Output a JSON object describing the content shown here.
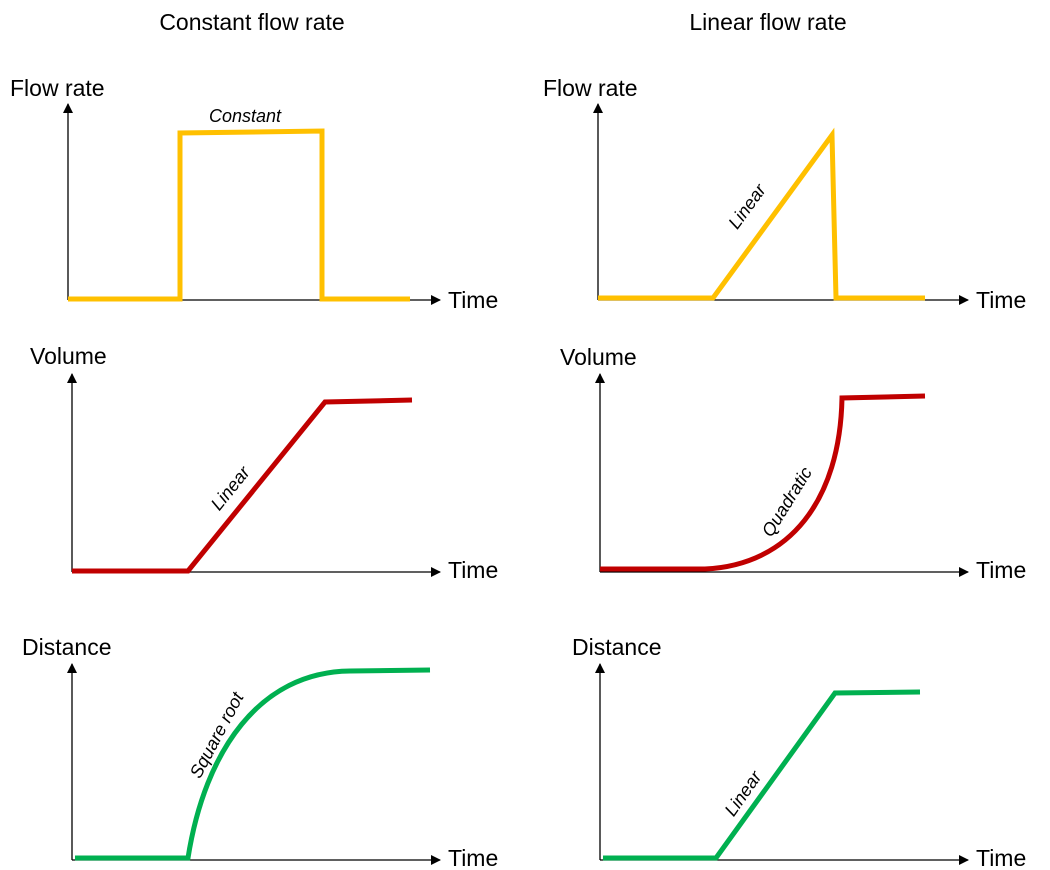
{
  "columns": [
    {
      "title": "Constant flow rate",
      "panels": [
        {
          "y_label": "Flow rate",
          "x_label": "Time",
          "curve_label": "Constant"
        },
        {
          "y_label": "Volume",
          "x_label": "Time",
          "curve_label": "Linear"
        },
        {
          "y_label": "Distance",
          "x_label": "Time",
          "curve_label": "Square root"
        }
      ]
    },
    {
      "title": "Linear flow rate",
      "panels": [
        {
          "y_label": "Flow rate",
          "x_label": "Time",
          "curve_label": "Linear"
        },
        {
          "y_label": "Volume",
          "x_label": "Time",
          "curve_label": "Quadratic"
        },
        {
          "y_label": "Distance",
          "x_label": "Time",
          "curve_label": "Linear"
        }
      ]
    }
  ]
}
